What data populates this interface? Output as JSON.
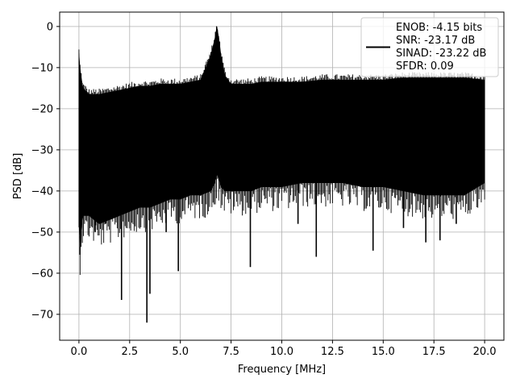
{
  "chart_data": {
    "type": "line",
    "xlabel": "Frequency [MHz]",
    "ylabel": "PSD [dB]",
    "xlim": [
      -0.95,
      20.95
    ],
    "ylim": [
      -76.3,
      3.5
    ],
    "xticks": [
      0.0,
      2.5,
      5.0,
      7.5,
      10.0,
      12.5,
      15.0,
      17.5,
      20.0
    ],
    "xtick_labels": [
      "0.0",
      "2.5",
      "5.0",
      "7.5",
      "10.0",
      "12.5",
      "15.0",
      "17.5",
      "20.0"
    ],
    "yticks": [
      0,
      -10,
      -20,
      -30,
      -40,
      -50,
      -60,
      -70
    ],
    "ytick_labels": [
      "0",
      "−10",
      "−20",
      "−30",
      "−40",
      "−50",
      "−60",
      "−70"
    ],
    "grid": true,
    "legend_position": "top-right",
    "legend_lines": [
      "ENOB: -4.15 bits",
      "SNR: -23.17 dB",
      "SINAD: -23.22 dB",
      "SFDR: 0.09"
    ],
    "series": [
      {
        "color": "#000000",
        "x": [
          0.0,
          0.05,
          0.1,
          0.15,
          0.2,
          0.5,
          1.0,
          1.5,
          2.0,
          2.5,
          3.0,
          3.5,
          4.0,
          4.5,
          5.0,
          5.5,
          6.0,
          6.5,
          6.7,
          6.8,
          6.9,
          7.0,
          7.2,
          7.5,
          8.0,
          8.5,
          9.0,
          10.0,
          11.0,
          12.0,
          13.0,
          14.0,
          15.0,
          16.0,
          17.0,
          18.0,
          19.0,
          20.0
        ],
        "upper": [
          -6.5,
          -10,
          -12,
          -13.5,
          -15,
          -16.5,
          -16.5,
          -16,
          -15.5,
          -15,
          -14.5,
          -14.5,
          -14,
          -14,
          -14,
          -13.5,
          -13,
          -7,
          -3,
          0,
          -3,
          -7,
          -12,
          -14,
          -14,
          -14,
          -13.5,
          -13.5,
          -13.5,
          -13,
          -13,
          -13,
          -13,
          -12.5,
          -12.5,
          -12.5,
          -12.5,
          -13
        ],
        "lower": [
          -47,
          -55,
          -50,
          -48,
          -46,
          -46,
          -48,
          -47,
          -46,
          -45,
          -44,
          -44,
          -43,
          -42,
          -42,
          -41,
          -41,
          -40,
          -38,
          -36,
          -37,
          -39,
          -40,
          -40,
          -40,
          -40,
          -39,
          -39,
          -38,
          -38,
          -38,
          -39,
          -39,
          -40,
          -41,
          -41,
          -41,
          -38
        ],
        "dips": [
          {
            "x": 0.05,
            "y": -55.5
          },
          {
            "x": 0.8,
            "y": -50
          },
          {
            "x": 1.3,
            "y": -48
          },
          {
            "x": 2.1,
            "y": -66.5
          },
          {
            "x": 3.35,
            "y": -72
          },
          {
            "x": 3.5,
            "y": -65
          },
          {
            "x": 4.3,
            "y": -50
          },
          {
            "x": 4.9,
            "y": -59.5
          },
          {
            "x": 8.45,
            "y": -58.5
          },
          {
            "x": 10.8,
            "y": -48
          },
          {
            "x": 11.7,
            "y": -56
          },
          {
            "x": 14.5,
            "y": -54.5
          },
          {
            "x": 16.0,
            "y": -49
          },
          {
            "x": 17.1,
            "y": -52.5
          },
          {
            "x": 17.8,
            "y": -52
          },
          {
            "x": 18.6,
            "y": -48
          }
        ]
      }
    ]
  }
}
